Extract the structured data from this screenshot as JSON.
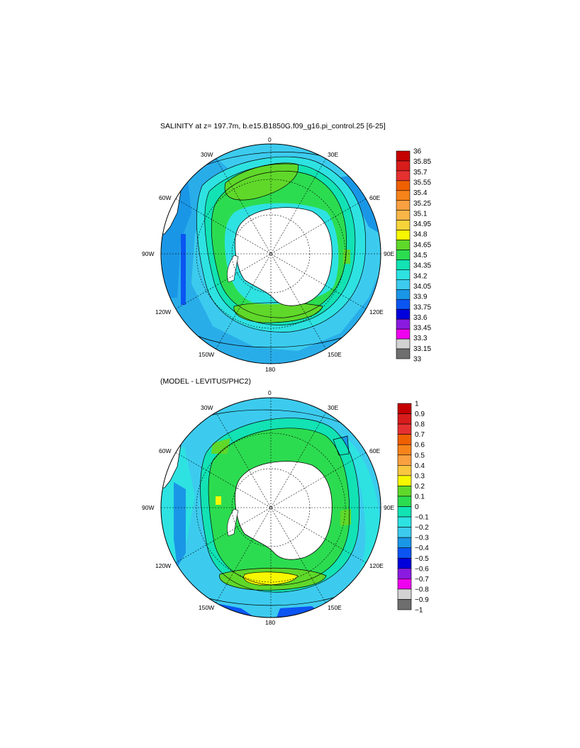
{
  "panels": [
    {
      "title": "SALINITY at z= 197.7m, b.e15.B1850G.f09_g16.pi_control.25 [6-25]",
      "longitude_labels": [
        "0",
        "30E",
        "60E",
        "90E",
        "120E",
        "150E",
        "180",
        "150W",
        "120W",
        "90W",
        "60W",
        "30W"
      ],
      "colorbar": {
        "labels": [
          "36",
          "35.85",
          "35.7",
          "35.55",
          "35.4",
          "35.25",
          "35.1",
          "34.95",
          "34.8",
          "34.65",
          "34.5",
          "34.35",
          "34.2",
          "34.05",
          "33.9",
          "33.75",
          "33.6",
          "33.45",
          "33.3",
          "33.15",
          "33"
        ],
        "colors": [
          "#c40000",
          "#d81c1c",
          "#e53030",
          "#ef6000",
          "#f7841a",
          "#f9a040",
          "#f9b648",
          "#f7d43a",
          "#f7f700",
          "#5fd82a",
          "#2cdc50",
          "#12e2b4",
          "#2ee2e2",
          "#3ccbee",
          "#1a96e6",
          "#0b55f2",
          "#0000dc",
          "#8a1ae0",
          "#ef00ef",
          "#d2d2d2",
          "#6e6e6e"
        ]
      }
    },
    {
      "title": "(MODEL - LEVITUS/PHC2)",
      "longitude_labels": [
        "0",
        "30E",
        "60E",
        "90E",
        "120E",
        "150E",
        "180",
        "150W",
        "120W",
        "90W",
        "60W",
        "30W"
      ],
      "colorbar": {
        "labels": [
          "1",
          "0.9",
          "0.8",
          "0.7",
          "0.6",
          "0.5",
          "0.4",
          "0.3",
          "0.2",
          "0.1",
          "0",
          "−0.1",
          "−0.2",
          "−0.3",
          "−0.4",
          "−0.5",
          "−0.6",
          "−0.7",
          "−0.8",
          "−0.9",
          "−1"
        ],
        "colors": [
          "#c40000",
          "#d81c1c",
          "#e53030",
          "#ef6000",
          "#f7841a",
          "#f9a040",
          "#f9c640",
          "#f7f700",
          "#5fd82a",
          "#2cdc50",
          "#12e2b4",
          "#2ee2e2",
          "#3ccbee",
          "#1a96e6",
          "#0b55f2",
          "#0000dc",
          "#8a1ae0",
          "#ef00ef",
          "#d2d2d2",
          "#6e6e6e"
        ]
      }
    }
  ]
}
